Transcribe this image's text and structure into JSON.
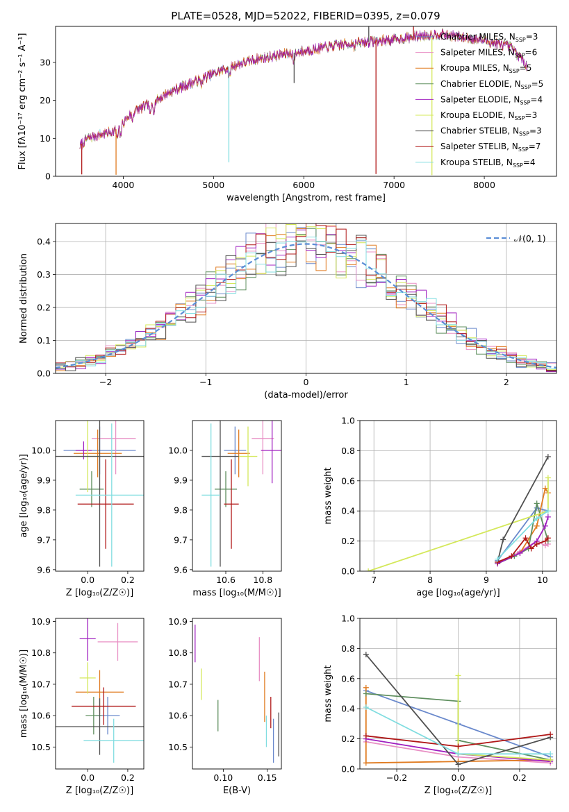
{
  "figure": {
    "title": "PLATE=0528, MJD=52022, FIBERID=0395, z=0.079",
    "models": [
      {
        "name": "Chabrier MILES",
        "nssp": "3",
        "color": "#6a89cc"
      },
      {
        "name": "Salpeter MILES",
        "nssp": "6",
        "color": "#e88fc4"
      },
      {
        "name": "Kroupa MILES",
        "nssp": "5",
        "color": "#e07b20"
      },
      {
        "name": "Chabrier ELODIE",
        "nssp": "5",
        "color": "#5f8f5f"
      },
      {
        "name": "Salpeter ELODIE",
        "nssp": "4",
        "color": "#a020c0"
      },
      {
        "name": "Kroupa ELODIE",
        "nssp": "3",
        "color": "#d4e85a"
      },
      {
        "name": "Chabrier STELIB",
        "nssp": "3",
        "color": "#505050"
      },
      {
        "name": "Salpeter STELIB",
        "nssp": "7",
        "color": "#b01818"
      },
      {
        "name": "Kroupa STELIB",
        "nssp": "4",
        "color": "#80dde0"
      }
    ]
  },
  "chart_data": [
    {
      "type": "line",
      "id": "spectrum",
      "xlabel": "wavelength [Angstrom, rest frame]",
      "ylabel": "Flux [fλ10⁻¹⁷ erg cm⁻² s⁻¹ A⁻¹]",
      "xlim": [
        3250,
        8800
      ],
      "ylim": [
        0,
        39.5
      ],
      "xticks": [
        4000,
        5000,
        6000,
        7000,
        8000
      ],
      "yticks": [
        0,
        10,
        20,
        30
      ],
      "x_range": [
        3520,
        8480
      ],
      "continuum_knots": [
        [
          3520,
          8
        ],
        [
          3600,
          10
        ],
        [
          3900,
          12
        ],
        [
          4000,
          14
        ],
        [
          4100,
          17
        ],
        [
          4200,
          18
        ],
        [
          4300,
          19
        ],
        [
          4500,
          22
        ],
        [
          4800,
          25
        ],
        [
          5000,
          27
        ],
        [
          5200,
          29
        ],
        [
          5500,
          31
        ],
        [
          6000,
          33
        ],
        [
          6500,
          35
        ],
        [
          7000,
          36
        ],
        [
          7300,
          37
        ],
        [
          7500,
          37.5
        ],
        [
          7800,
          36.5
        ],
        [
          8000,
          35.8
        ],
        [
          8300,
          34
        ],
        [
          8480,
          29
        ]
      ],
      "absorption_lines": [
        [
          3934,
          -3
        ],
        [
          3969,
          -3
        ],
        [
          4102,
          -2
        ],
        [
          4300,
          -3
        ],
        [
          4340,
          -2
        ],
        [
          4861,
          -1.5
        ],
        [
          5175,
          -3
        ],
        [
          5890,
          -3
        ],
        [
          6563,
          -1
        ]
      ],
      "spikes": [
        [
          3540,
          -8
        ],
        [
          3920,
          -12
        ],
        [
          5170,
          -25
        ],
        [
          5893,
          -8
        ],
        [
          6800,
          -35
        ],
        [
          7420,
          -37
        ],
        [
          6720,
          4
        ],
        [
          7215,
          3.5
        ]
      ],
      "grid": false,
      "legend": "right"
    },
    {
      "type": "step",
      "id": "residuals",
      "xlabel": "(data-model)/error",
      "ylabel": "Normed distribution",
      "xlim": [
        -2.5,
        2.5
      ],
      "ylim": [
        0,
        0.455
      ],
      "xticks": [
        -2,
        -1,
        0,
        1,
        2
      ],
      "yticks": [
        0.0,
        0.1,
        0.2,
        0.3,
        0.4
      ],
      "bin_width": 0.1,
      "reference_curve": {
        "label": "𝒩(0, 1)",
        "mean": 0,
        "sigma": 1,
        "color": "#5b8ed6"
      },
      "grid": true,
      "legend": "top-right"
    },
    {
      "type": "scatter",
      "id": "age-vs-Z",
      "xlabel": "Z [log₁₀(Z/Z☉)]",
      "ylabel": "age  [log₁₀(age/yr)]",
      "xlim": [
        -0.16,
        0.28
      ],
      "ylim": [
        9.595,
        10.1
      ],
      "xticks": [
        0.0,
        0.2
      ],
      "yticks": [
        9.6,
        9.7,
        9.8,
        9.9,
        10.0
      ],
      "points": [
        {
          "model": 0,
          "x": 0.06,
          "y": 10.0,
          "xerr": [
            0.18,
            0.18
          ],
          "yerr": [
            0.08,
            0.08
          ]
        },
        {
          "model": 1,
          "x": 0.14,
          "y": 10.04,
          "xerr": [
            0.12,
            0.1
          ],
          "yerr": [
            0.12,
            0.12
          ]
        },
        {
          "model": 2,
          "x": 0.05,
          "y": 9.99,
          "xerr": [
            0.12,
            0.12
          ],
          "yerr": [
            0.08,
            0.08
          ]
        },
        {
          "model": 3,
          "x": 0.02,
          "y": 9.87,
          "xerr": [
            0.06,
            0.06
          ],
          "yerr": [
            0.06,
            0.06
          ]
        },
        {
          "model": 4,
          "x": -0.02,
          "y": 10.0,
          "xerr": [
            0.04,
            0.04
          ],
          "yerr": [
            0.03,
            0.03
          ]
        },
        {
          "model": 5,
          "x": 0.0,
          "y": 9.98,
          "xerr": [
            0.06,
            0.06
          ],
          "yerr": [
            0.12,
            0.12
          ]
        },
        {
          "model": 6,
          "x": 0.06,
          "y": 9.98,
          "xerr": [
            0.25,
            0.25
          ],
          "yerr": [
            0.37,
            0.37
          ]
        },
        {
          "model": 7,
          "x": 0.09,
          "y": 9.82,
          "xerr": [
            0.14,
            0.14
          ],
          "yerr": [
            0.15,
            0.15
          ]
        },
        {
          "model": 8,
          "x": 0.12,
          "y": 9.85,
          "xerr": [
            0.18,
            0.18
          ],
          "yerr": [
            0.24,
            0.24
          ]
        }
      ],
      "grid": false
    },
    {
      "type": "scatter",
      "id": "age-vs-mass",
      "xlabel": "mass [log₁₀(M/M☉)]",
      "ylabel": "",
      "xlim": [
        10.42,
        10.9
      ],
      "ylim": [
        9.595,
        10.1
      ],
      "xticks": [
        10.6,
        10.8
      ],
      "yticks": [
        9.6,
        9.7,
        9.8,
        9.9,
        10.0
      ],
      "points": [
        {
          "model": 0,
          "x": 10.65,
          "y": 10.0,
          "xerr": [
            0.06,
            0.06
          ],
          "yerr": [
            0.08,
            0.08
          ]
        },
        {
          "model": 1,
          "x": 10.8,
          "y": 10.04,
          "xerr": [
            0.06,
            0.06
          ],
          "yerr": [
            0.12,
            0.12
          ]
        },
        {
          "model": 2,
          "x": 10.67,
          "y": 9.99,
          "xerr": [
            0.06,
            0.06
          ],
          "yerr": [
            0.08,
            0.08
          ]
        },
        {
          "model": 3,
          "x": 10.6,
          "y": 9.87,
          "xerr": [
            0.06,
            0.06
          ],
          "yerr": [
            0.06,
            0.06
          ]
        },
        {
          "model": 4,
          "x": 10.85,
          "y": 10.0,
          "xerr": [
            0.06,
            0.06
          ],
          "yerr": [
            0.11,
            0.11
          ]
        },
        {
          "model": 5,
          "x": 10.72,
          "y": 9.98,
          "xerr": [
            0.05,
            0.05
          ],
          "yerr": [
            0.1,
            0.1
          ]
        },
        {
          "model": 6,
          "x": 10.57,
          "y": 9.98,
          "xerr": [
            0.1,
            0.1
          ],
          "yerr": [
            0.37,
            0.37
          ]
        },
        {
          "model": 7,
          "x": 10.63,
          "y": 9.82,
          "xerr": [
            0.04,
            0.04
          ],
          "yerr": [
            0.15,
            0.15
          ]
        },
        {
          "model": 8,
          "x": 10.52,
          "y": 9.85,
          "xerr": [
            0.05,
            0.05
          ],
          "yerr": [
            0.24,
            0.24
          ]
        }
      ],
      "grid": false
    },
    {
      "type": "line",
      "id": "weight-vs-age",
      "xlabel": "age  [log₁₀(age/yr)]",
      "ylabel": "mass weight",
      "xlim": [
        6.75,
        10.25
      ],
      "ylim": [
        0,
        1.0
      ],
      "xticks": [
        7,
        8,
        9,
        10
      ],
      "yticks": [
        0.0,
        0.2,
        0.4,
        0.6,
        0.8,
        1.0
      ],
      "series": [
        {
          "model": 0,
          "x": [
            9.2,
            9.9,
            10.1
          ],
          "y": [
            0.07,
            0.42,
            0.4
          ]
        },
        {
          "model": 1,
          "x": [
            9.2,
            9.6,
            9.9,
            10.05,
            10.1
          ],
          "y": [
            0.05,
            0.13,
            0.2,
            0.17,
            0.18
          ]
        },
        {
          "model": 2,
          "x": [
            9.2,
            9.6,
            9.9,
            10.05,
            10.1
          ],
          "y": [
            0.05,
            0.12,
            0.3,
            0.55,
            0.52
          ]
        },
        {
          "model": 3,
          "x": [
            9.2,
            9.5,
            9.75,
            9.9,
            10.1
          ],
          "y": [
            0.05,
            0.1,
            0.15,
            0.45,
            0.2
          ]
        },
        {
          "model": 4,
          "x": [
            9.2,
            9.6,
            9.9,
            10.05,
            10.1
          ],
          "y": [
            0.05,
            0.12,
            0.2,
            0.3,
            0.36
          ]
        },
        {
          "model": 5,
          "x": [
            6.9,
            10.1,
            10.1
          ],
          "y": [
            0.0,
            0.4,
            0.62
          ]
        },
        {
          "model": 6,
          "x": [
            9.2,
            9.3,
            10.1
          ],
          "y": [
            0.06,
            0.21,
            0.76
          ]
        },
        {
          "model": 7,
          "x": [
            9.2,
            9.45,
            9.7,
            9.8,
            9.9,
            10.05,
            10.1
          ],
          "y": [
            0.06,
            0.1,
            0.22,
            0.15,
            0.18,
            0.2,
            0.22
          ]
        },
        {
          "model": 8,
          "x": [
            9.2,
            9.9,
            10.1
          ],
          "y": [
            0.08,
            0.35,
            0.4
          ]
        }
      ],
      "grid": true
    },
    {
      "type": "scatter",
      "id": "mass-vs-Z",
      "xlabel": "Z [log₁₀(Z/Z☉)]",
      "ylabel": "mass [log₁₀(M/M☉)]",
      "xlim": [
        -0.16,
        0.28
      ],
      "ylim": [
        10.43,
        10.91
      ],
      "xticks": [
        0.0,
        0.2
      ],
      "yticks": [
        10.5,
        10.6,
        10.7,
        10.8,
        10.9
      ],
      "points": [
        {
          "model": 0,
          "x": 0.1,
          "y": 10.6,
          "xerr": [
            0.06,
            0.06
          ],
          "yerr": [
            0.06,
            0.06
          ]
        },
        {
          "model": 1,
          "x": 0.15,
          "y": 10.835,
          "xerr": [
            0.1,
            0.1
          ],
          "yerr": [
            0.06,
            0.06
          ]
        },
        {
          "model": 2,
          "x": 0.06,
          "y": 10.675,
          "xerr": [
            0.12,
            0.12
          ],
          "yerr": [
            0.07,
            0.07
          ]
        },
        {
          "model": 3,
          "x": 0.03,
          "y": 10.6,
          "xerr": [
            0.04,
            0.04
          ],
          "yerr": [
            0.06,
            0.06
          ]
        },
        {
          "model": 4,
          "x": 0.0,
          "y": 10.845,
          "xerr": [
            0.04,
            0.04
          ],
          "yerr": [
            0.07,
            0.07
          ]
        },
        {
          "model": 5,
          "x": 0.0,
          "y": 10.72,
          "xerr": [
            0.04,
            0.04
          ],
          "yerr": [
            0.05,
            0.05
          ]
        },
        {
          "model": 6,
          "x": 0.06,
          "y": 10.565,
          "xerr": [
            0.25,
            0.25
          ],
          "yerr": [
            0.09,
            0.09
          ]
        },
        {
          "model": 7,
          "x": 0.08,
          "y": 10.63,
          "xerr": [
            0.16,
            0.16
          ],
          "yerr": [
            0.06,
            0.06
          ]
        },
        {
          "model": 8,
          "x": 0.13,
          "y": 10.52,
          "xerr": [
            0.15,
            0.15
          ],
          "yerr": [
            0.07,
            0.07
          ]
        }
      ],
      "grid": false
    },
    {
      "type": "scatter",
      "id": "mass-vs-ebv",
      "xlabel": "E(B-V)",
      "ylabel": "",
      "xlim": [
        0.065,
        0.166
      ],
      "ylim": [
        10.43,
        10.91
      ],
      "xticks": [
        0.1,
        0.15
      ],
      "yticks": [
        10.5,
        10.6,
        10.7,
        10.8,
        10.9
      ],
      "points": [
        {
          "model": 0,
          "x": 0.157,
          "y": 10.52,
          "xerr": [
            0,
            0
          ],
          "yerr": [
            0.07,
            0.07
          ]
        },
        {
          "model": 1,
          "x": 0.141,
          "y": 10.78,
          "xerr": [
            0,
            0
          ],
          "yerr": [
            0.07,
            0.07
          ]
        },
        {
          "model": 2,
          "x": 0.147,
          "y": 10.66,
          "xerr": [
            0,
            0
          ],
          "yerr": [
            0.08,
            0.08
          ]
        },
        {
          "model": 3,
          "x": 0.094,
          "y": 10.6,
          "xerr": [
            0,
            0
          ],
          "yerr": [
            0.05,
            0.05
          ]
        },
        {
          "model": 4,
          "x": 0.068,
          "y": 10.83,
          "xerr": [
            0,
            0
          ],
          "yerr": [
            0.06,
            0.06
          ]
        },
        {
          "model": 5,
          "x": 0.075,
          "y": 10.7,
          "xerr": [
            0,
            0
          ],
          "yerr": [
            0.05,
            0.05
          ]
        },
        {
          "model": 6,
          "x": 0.163,
          "y": 10.54,
          "xerr": [
            0,
            0
          ],
          "yerr": [
            0.07,
            0.07
          ]
        },
        {
          "model": 7,
          "x": 0.154,
          "y": 10.61,
          "xerr": [
            0,
            0
          ],
          "yerr": [
            0.05,
            0.05
          ]
        },
        {
          "model": 8,
          "x": 0.149,
          "y": 10.55,
          "xerr": [
            0,
            0
          ],
          "yerr": [
            0.05,
            0.05
          ]
        }
      ],
      "grid": false
    },
    {
      "type": "line",
      "id": "weight-vs-Z",
      "xlabel": "Z [log₁₀(Z/Z☉)]",
      "ylabel": "mass weight",
      "xlim": [
        -0.32,
        0.32
      ],
      "ylim": [
        0,
        1.0
      ],
      "xticks": [
        -0.2,
        0.0,
        0.2
      ],
      "yticks": [
        0.0,
        0.2,
        0.4,
        0.6,
        0.8,
        1.0
      ],
      "series": [
        {
          "model": 0,
          "x": [
            -0.3,
            0.0,
            0.3
          ],
          "y": [
            0.52,
            0.3,
            0.08
          ]
        },
        {
          "model": 1,
          "x": [
            -0.3,
            0.0,
            0.3
          ],
          "y": [
            0.18,
            0.08,
            0.04
          ]
        },
        {
          "model": 2,
          "x": [
            -0.3,
            -0.3,
            0.0,
            0.3
          ],
          "y": [
            0.54,
            0.04,
            0.05,
            0.06
          ]
        },
        {
          "model": 3,
          "x": [
            -0.3,
            0.0,
            0.0,
            0.3
          ],
          "y": [
            0.5,
            0.45,
            0.19,
            0.06
          ]
        },
        {
          "model": 4,
          "x": [
            -0.3,
            0.0,
            0.3
          ],
          "y": [
            0.2,
            0.1,
            0.05
          ]
        },
        {
          "model": 5,
          "x": [
            0.0,
            0.0,
            0.3
          ],
          "y": [
            0.62,
            0.1,
            0.06
          ]
        },
        {
          "model": 6,
          "x": [
            -0.3,
            0.0,
            0.3
          ],
          "y": [
            0.76,
            0.03,
            0.21
          ]
        },
        {
          "model": 7,
          "x": [
            -0.3,
            0.0,
            0.3
          ],
          "y": [
            0.22,
            0.15,
            0.23
          ]
        },
        {
          "model": 8,
          "x": [
            -0.3,
            0.0,
            0.3
          ],
          "y": [
            0.41,
            0.1,
            0.1
          ]
        }
      ],
      "grid": true
    }
  ]
}
